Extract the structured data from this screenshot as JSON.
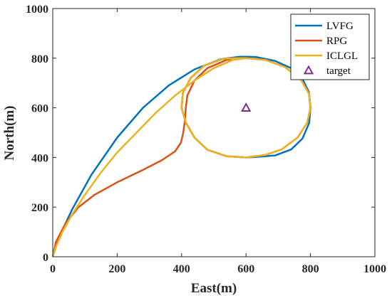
{
  "chart_data": {
    "type": "line",
    "xlabel": "East(m)",
    "ylabel": "North(m)",
    "xlim": [
      0,
      1000
    ],
    "ylim": [
      0,
      1000
    ],
    "xticks": [
      "0",
      "200",
      "400",
      "600",
      "800",
      "1000"
    ],
    "yticks": [
      "0",
      "200",
      "400",
      "600",
      "800",
      "1000"
    ],
    "grid": false,
    "legend_position": "top-right",
    "series": [
      {
        "name": "LVFG",
        "color": "#0072BD",
        "x": [
          0,
          20,
          60,
          120,
          200,
          280,
          360,
          440,
          520,
          580,
          600,
          630,
          690,
          740,
          775,
          795,
          800,
          796,
          775,
          740,
          690,
          630,
          600,
          540,
          480,
          440,
          413,
          400,
          404,
          428,
          470,
          530,
          580,
          600
        ],
        "y": [
          0,
          80,
          190,
          330,
          480,
          600,
          690,
          755,
          795,
          806,
          806,
          805,
          789,
          760,
          717,
          664,
          600,
          539,
          476,
          432,
          408,
          402,
          400,
          405,
          431,
          480,
          541,
          600,
          660,
          720,
          770,
          798,
          805,
          805
        ]
      },
      {
        "name": "RPG",
        "color": "#D95319",
        "x": [
          0,
          10,
          40,
          80,
          130,
          200,
          280,
          340,
          380,
          398,
          405,
          410,
          413,
          418,
          440,
          480,
          540,
          600,
          660,
          720,
          770,
          796,
          800,
          790,
          760,
          710,
          660,
          600,
          540,
          480,
          440,
          413,
          400,
          404,
          428,
          470,
          530,
          580,
          600
        ],
        "y": [
          0,
          60,
          135,
          200,
          250,
          300,
          350,
          390,
          425,
          460,
          500,
          545,
          600,
          650,
          710,
          760,
          793,
          800,
          793,
          765,
          715,
          655,
          600,
          540,
          480,
          432,
          410,
          400,
          405,
          431,
          480,
          541,
          600,
          660,
          720,
          770,
          798,
          800,
          800
        ]
      },
      {
        "name": "ICLGL",
        "color": "#EDB120",
        "x": [
          0,
          10,
          30,
          60,
          100,
          150,
          200,
          260,
          320,
          380,
          440,
          500,
          560,
          600,
          660,
          720,
          770,
          796,
          800,
          790,
          760,
          710,
          660,
          600,
          540,
          480,
          440,
          413,
          400,
          404,
          428,
          470,
          530,
          580,
          600
        ],
        "y": [
          0,
          40,
          100,
          170,
          250,
          340,
          420,
          500,
          580,
          650,
          710,
          760,
          793,
          800,
          793,
          765,
          715,
          655,
          600,
          540,
          480,
          432,
          410,
          400,
          405,
          431,
          480,
          541,
          600,
          660,
          720,
          770,
          798,
          800,
          800
        ]
      }
    ],
    "markers": [
      {
        "name": "target",
        "symbol": "triangle",
        "color": "#7E2F8E",
        "x": 600,
        "y": 600
      }
    ]
  }
}
